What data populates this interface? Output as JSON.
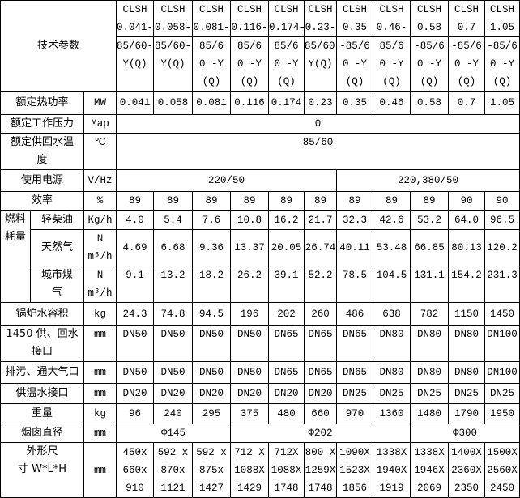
{
  "header": {
    "title": "技术参数",
    "models": [
      [
        "CLSH\n0.041-",
        "85/60-\nY(Q)"
      ],
      [
        "CLSH\n0.058-",
        "85/60-\nY(Q)"
      ],
      [
        "CLSH\n0.081-",
        "85/6\n0 -Y\n(Q)"
      ],
      [
        "CLSH\n0.116-",
        "85/6\n0 -Y\n(Q)"
      ],
      [
        "CLSH\n0.174-",
        "85/6\n0 -Y\n(Q)"
      ],
      [
        "CLSH\n0.23-",
        "85/60-\nY(Q)"
      ],
      [
        "CLSH\n0.35",
        "-85/6\n0 -Y\n(Q)"
      ],
      [
        "CLSH\n0.46-",
        "85/6\n0 -Y\n(Q)"
      ],
      [
        "CLSH\n0.58",
        "-85/6\n0 -Y\n(Q)"
      ],
      [
        "CLSH\n0.7",
        "-85/6\n0 -Y\n(Q)"
      ],
      [
        "CLSH\n1.05",
        "-85/6\n0 -Y\n(Q)"
      ]
    ]
  },
  "rows": [
    {
      "label": "额定热功率",
      "unit": "MW",
      "cells": [
        [
          "0.041",
          1
        ],
        [
          "0.058",
          1
        ],
        [
          "0.081",
          1
        ],
        [
          "0.116",
          1
        ],
        [
          "0.174",
          1
        ],
        [
          "0.23",
          1
        ],
        [
          "0.35",
          1
        ],
        [
          "0.46",
          1
        ],
        [
          "0.58",
          1
        ],
        [
          "0.7",
          1
        ],
        [
          "1.05",
          1
        ]
      ]
    },
    {
      "label": "额定工作压力",
      "unit": "Map",
      "cells": [
        [
          "0",
          11
        ]
      ]
    },
    {
      "label": "额定供回水温\n度",
      "unit": "℃",
      "cells": [
        [
          "85/60",
          11
        ]
      ]
    },
    {
      "label": "使用电源",
      "unit": "V/Hz",
      "cells": [
        [
          "220/50",
          6
        ],
        [
          "220,380/50",
          5
        ]
      ]
    },
    {
      "label": "效率",
      "unit": "%",
      "cells": [
        [
          "89",
          1
        ],
        [
          "89",
          1
        ],
        [
          "89",
          1
        ],
        [
          "89",
          1
        ],
        [
          "89",
          1
        ],
        [
          "89",
          1
        ],
        [
          "89",
          1
        ],
        [
          "89",
          1
        ],
        [
          "89",
          1
        ],
        [
          "90",
          1
        ],
        [
          "90",
          1
        ]
      ]
    },
    {
      "group": "燃料\n耗量",
      "label": "轻柴油",
      "unit": "Kg/h",
      "cells": [
        [
          "4.0",
          1
        ],
        [
          "5.4",
          1
        ],
        [
          "7.6",
          1
        ],
        [
          "10.8",
          1
        ],
        [
          "16.2",
          1
        ],
        [
          "21.7",
          1
        ],
        [
          "32.3",
          1
        ],
        [
          "42.6",
          1
        ],
        [
          "53.2",
          1
        ],
        [
          "64.0",
          1
        ],
        [
          "96.5",
          1
        ]
      ]
    },
    {
      "label": "天然气",
      "unit": "N m³/h",
      "cells": [
        [
          "4.69",
          1
        ],
        [
          "6.68",
          1
        ],
        [
          "9.36",
          1
        ],
        [
          "13.37",
          1
        ],
        [
          "20.05",
          1
        ],
        [
          "26.74",
          1
        ],
        [
          "40.11",
          1
        ],
        [
          "53.48",
          1
        ],
        [
          "66.85",
          1
        ],
        [
          "80.13",
          1
        ],
        [
          "120.2",
          1
        ]
      ]
    },
    {
      "label": "城市煤\n气",
      "unit": "N m³/h",
      "cells": [
        [
          "9.1",
          1
        ],
        [
          "13.2",
          1
        ],
        [
          "18.2",
          1
        ],
        [
          "26.2",
          1
        ],
        [
          "39.1",
          1
        ],
        [
          "52.2",
          1
        ],
        [
          "78.5",
          1
        ],
        [
          "104.5",
          1
        ],
        [
          "131.1",
          1
        ],
        [
          "154.2",
          1
        ],
        [
          "231.3",
          1
        ]
      ]
    },
    {
      "label": "锅炉水容积",
      "unit": "kg",
      "cells": [
        [
          "24.3",
          1
        ],
        [
          "74.8",
          1
        ],
        [
          "94.5",
          1
        ],
        [
          "196",
          1
        ],
        [
          "202",
          1
        ],
        [
          "260",
          1
        ],
        [
          "486",
          1
        ],
        [
          "638",
          1
        ],
        [
          "782",
          1
        ],
        [
          "1150",
          1
        ],
        [
          "1450",
          1
        ]
      ]
    },
    {
      "label": "1450 供、回水\n接口",
      "unit": "mm",
      "cells": [
        [
          "DN50",
          1
        ],
        [
          "DN50",
          1
        ],
        [
          "DN50",
          1
        ],
        [
          "DN50",
          1
        ],
        [
          "DN65",
          1
        ],
        [
          "DN65",
          1
        ],
        [
          "DN65",
          1
        ],
        [
          "DN80",
          1
        ],
        [
          "DN80",
          1
        ],
        [
          "DN80",
          1
        ],
        [
          "DN100",
          1
        ]
      ]
    },
    {
      "label": "排污、通大气口",
      "unit": "mm",
      "cells": [
        [
          "DN50",
          1
        ],
        [
          "DN50",
          1
        ],
        [
          "DN50",
          1
        ],
        [
          "DN50",
          1
        ],
        [
          "DN65",
          1
        ],
        [
          "DN65",
          1
        ],
        [
          "DN65",
          1
        ],
        [
          "DN80",
          1
        ],
        [
          "DN80",
          1
        ],
        [
          "DN80",
          1
        ],
        [
          "DN100",
          1
        ]
      ]
    },
    {
      "label": "供温水接口",
      "unit": "mm",
      "cells": [
        [
          "DN20",
          1
        ],
        [
          "DN20",
          1
        ],
        [
          "DN20",
          1
        ],
        [
          "DN20",
          1
        ],
        [
          "DN20",
          1
        ],
        [
          "DN20",
          1
        ],
        [
          "DN25",
          1
        ],
        [
          "DN25",
          1
        ],
        [
          "DN25",
          1
        ],
        [
          "DN25",
          1
        ],
        [
          "DN25",
          1
        ]
      ]
    },
    {
      "label": "重量",
      "unit": "kg",
      "cells": [
        [
          "96",
          1
        ],
        [
          "240",
          1
        ],
        [
          "295",
          1
        ],
        [
          "375",
          1
        ],
        [
          "480",
          1
        ],
        [
          "660",
          1
        ],
        [
          "970",
          1
        ],
        [
          "1360",
          1
        ],
        [
          "1480",
          1
        ],
        [
          "1790",
          1
        ],
        [
          "1950",
          1
        ]
      ]
    },
    {
      "label": "烟囱直径",
      "unit": "mm",
      "cells": [
        [
          "Φ145",
          3
        ],
        [
          "Φ202",
          5
        ],
        [
          "Φ300",
          3
        ]
      ]
    },
    {
      "label": "外形尺\n寸 W*L*H",
      "unit": "mm",
      "cells": [
        [
          "450x\n660x\n910",
          1
        ],
        [
          "592 x\n870x\n1121",
          1
        ],
        [
          "592 x\n875x\n1427",
          1
        ],
        [
          "712 X\n1088X\n1429",
          1
        ],
        [
          "712X\n1088X\n1748",
          1
        ],
        [
          "800 X\n1259X\n1748",
          1
        ],
        [
          "1090X\n1523X\n1856",
          1
        ],
        [
          "1338X\n1940X\n1919",
          1
        ],
        [
          "1338X\n1946X\n2069",
          1
        ],
        [
          "1400X\n2360X\n2350",
          1
        ],
        [
          "1500X\n2560X\n2450",
          1
        ]
      ]
    }
  ]
}
